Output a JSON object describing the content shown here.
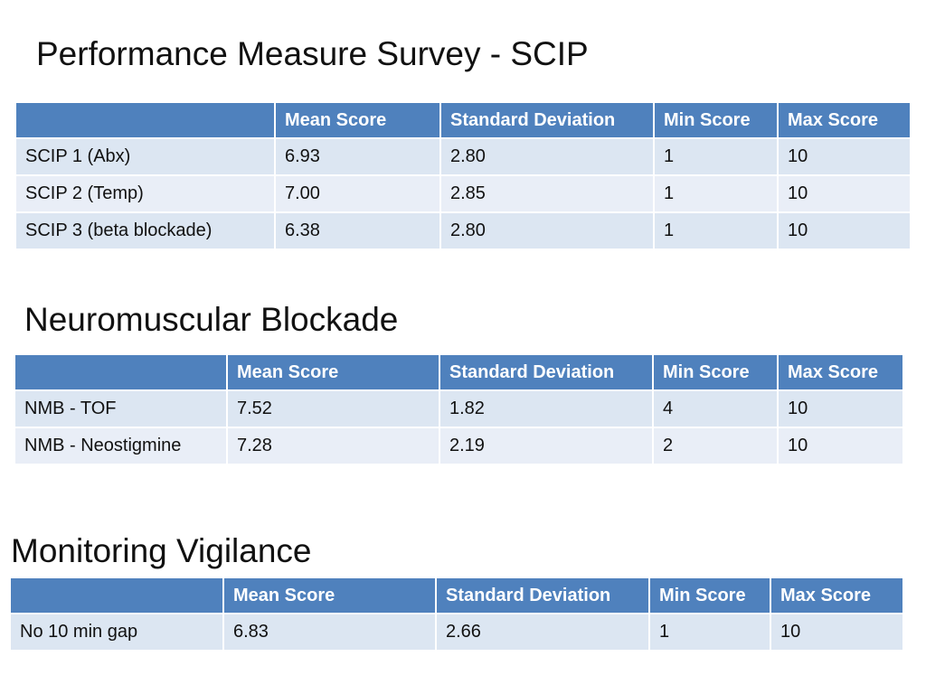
{
  "sections": [
    {
      "title": "Performance Measure Survey - SCIP",
      "headers": [
        "",
        "Mean Score",
        "Standard Deviation",
        "Min Score",
        "Max Score"
      ],
      "rows": [
        [
          "SCIP 1 (Abx)",
          "6.93",
          "2.80",
          "1",
          "10"
        ],
        [
          "SCIP 2 (Temp)",
          "7.00",
          "2.85",
          "1",
          "10"
        ],
        [
          "SCIP 3 (beta blockade)",
          "6.38",
          "2.80",
          "1",
          "10"
        ]
      ]
    },
    {
      "title": "Neuromuscular Blockade",
      "headers": [
        "",
        "Mean Score",
        "Standard Deviation",
        "Min Score",
        "Max Score"
      ],
      "rows": [
        [
          "NMB - TOF",
          "7.52",
          "1.82",
          "4",
          "10"
        ],
        [
          "NMB - Neostigmine",
          "7.28",
          "2.19",
          "2",
          "10"
        ]
      ]
    },
    {
      "title": "Monitoring Vigilance",
      "headers": [
        "",
        "Mean Score",
        "Standard Deviation",
        "Min Score",
        "Max Score"
      ],
      "rows": [
        [
          "No 10 min gap",
          "6.83",
          "2.66",
          "1",
          "10"
        ]
      ]
    }
  ]
}
